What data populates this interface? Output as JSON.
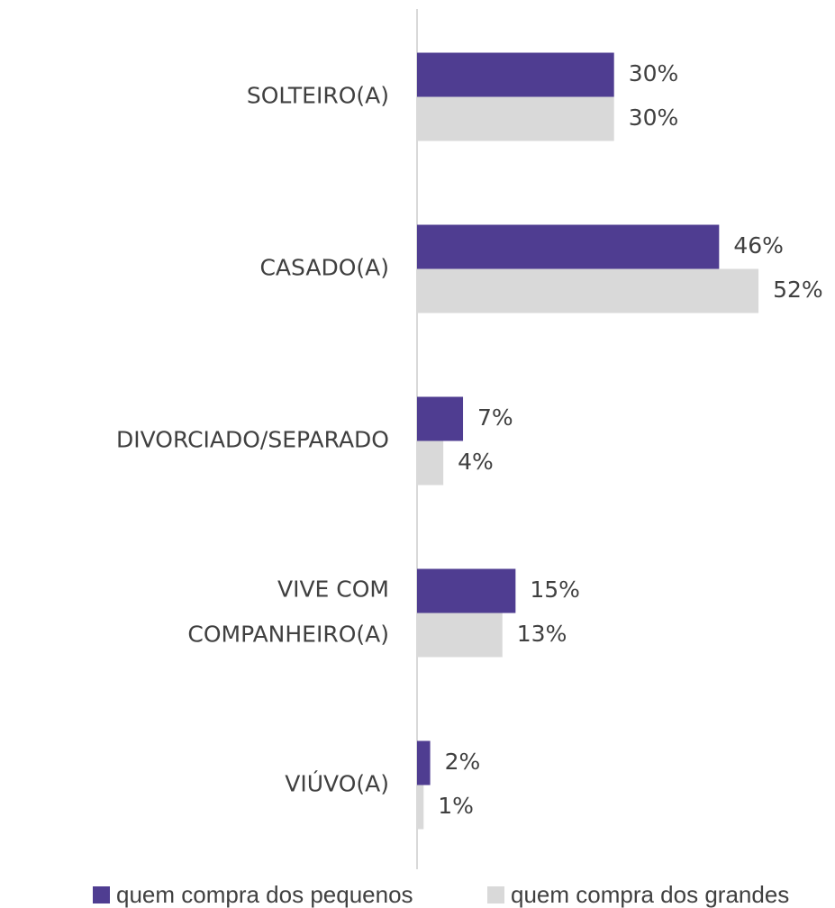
{
  "chart_data": {
    "type": "bar",
    "orientation": "horizontal",
    "categories": [
      "SOLTEIRO(A)",
      "CASADO(A)",
      "DIVORCIADO/SEPARADO",
      "VIVE COM COMPANHEIRO(A)",
      "VIÚVO(A)"
    ],
    "series": [
      {
        "name": "quem compra dos pequenos",
        "color": "#4f3d91",
        "values": [
          30,
          46,
          7,
          15,
          2
        ],
        "value_labels": [
          "30%",
          "46%",
          "7%",
          "15%",
          "2%"
        ]
      },
      {
        "name": "quem compra dos grandes",
        "color": "#d9d9d9",
        "values": [
          30,
          52,
          4,
          13,
          1
        ],
        "value_labels": [
          "30%",
          "52%",
          "4%",
          "13%",
          "1%"
        ]
      }
    ],
    "legend": "bottom"
  }
}
